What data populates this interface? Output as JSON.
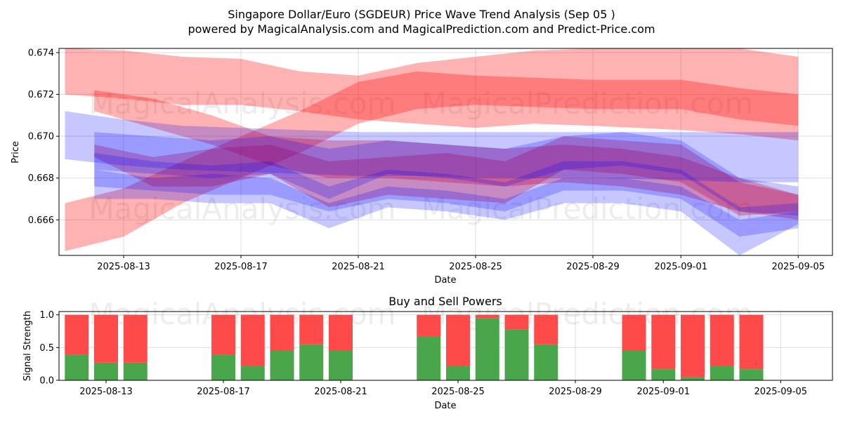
{
  "chart_data": [
    {
      "type": "area",
      "title": "Singapore Dollar/Euro (SGDEUR) Price Wave Trend Analysis (Sep 05 )",
      "subtitle": "powered by MagicalAnalysis.com and MagicalPrediction.com and Predict-Price.com",
      "xlabel": "Date",
      "ylabel": "Price",
      "x_ticks": [
        "2025-08-13",
        "2025-08-17",
        "2025-08-21",
        "2025-08-25",
        "2025-08-29",
        "2025-09-01",
        "2025-09-05"
      ],
      "y_ticks": [
        "0.666",
        "0.668",
        "0.670",
        "0.672",
        "0.674"
      ],
      "ylim": [
        0.6643,
        0.6742
      ],
      "grid": true,
      "watermarks": [
        "MagicalAnalysis.com",
        "MagicalPrediction.com"
      ],
      "colors": {
        "red_band": "#ff0000",
        "blue_band": "#0000ff"
      },
      "red_bands": [
        {
          "x": [
            "2025-08-11",
            "2025-08-13",
            "2025-08-15",
            "2025-08-17",
            "2025-08-19",
            "2025-08-21",
            "2025-08-23",
            "2025-08-25",
            "2025-08-27",
            "2025-08-29",
            "2025-09-01",
            "2025-09-03",
            "2025-09-05"
          ],
          "upper": [
            0.6742,
            0.6741,
            0.6738,
            0.6737,
            0.6731,
            0.6729,
            0.6735,
            0.6738,
            0.6741,
            0.6742,
            0.6742,
            0.6742,
            0.6738
          ],
          "lower": [
            0.672,
            0.6718,
            0.6715,
            0.6715,
            0.6712,
            0.6708,
            0.6706,
            0.6704,
            0.6706,
            0.6705,
            0.6703,
            0.6701,
            0.6698
          ]
        },
        {
          "x": [
            "2025-08-11",
            "2025-08-13",
            "2025-08-15",
            "2025-08-17",
            "2025-08-19",
            "2025-08-21",
            "2025-08-23",
            "2025-08-25",
            "2025-08-27",
            "2025-08-29",
            "2025-09-01",
            "2025-09-03",
            "2025-09-05"
          ],
          "upper": [
            0.6668,
            0.6675,
            0.6688,
            0.67,
            0.6712,
            0.6726,
            0.6731,
            0.6729,
            0.6728,
            0.6727,
            0.6727,
            0.6723,
            0.672
          ],
          "lower": [
            0.6645,
            0.6652,
            0.6668,
            0.668,
            0.6692,
            0.6706,
            0.6713,
            0.6715,
            0.6714,
            0.6713,
            0.6713,
            0.6708,
            0.6705
          ]
        },
        {
          "x": [
            "2025-08-12",
            "2025-08-14",
            "2025-08-16",
            "2025-08-18",
            "2025-08-20",
            "2025-08-22",
            "2025-08-24",
            "2025-08-26",
            "2025-08-28",
            "2025-08-30",
            "2025-09-01",
            "2025-09-03",
            "2025-09-05"
          ],
          "upper": [
            0.6696,
            0.669,
            0.6694,
            0.6696,
            0.6688,
            0.669,
            0.6692,
            0.6688,
            0.67,
            0.6698,
            0.6696,
            0.6678,
            0.6672
          ],
          "lower": [
            0.669,
            0.6676,
            0.6676,
            0.6682,
            0.6666,
            0.6672,
            0.667,
            0.6668,
            0.6684,
            0.6682,
            0.6678,
            0.6662,
            0.6664
          ]
        },
        {
          "x": [
            "2025-08-12",
            "2025-08-14",
            "2025-08-16",
            "2025-08-18",
            "2025-08-20",
            "2025-08-22",
            "2025-08-24",
            "2025-08-26",
            "2025-08-28",
            "2025-08-30",
            "2025-09-01",
            "2025-09-03",
            "2025-09-05"
          ],
          "upper": [
            0.6722,
            0.6718,
            0.671,
            0.67,
            0.6698,
            0.6698,
            0.6696,
            0.6694,
            0.6696,
            0.6694,
            0.669,
            0.668,
            0.6672
          ],
          "lower": [
            0.6712,
            0.6704,
            0.6696,
            0.6686,
            0.668,
            0.668,
            0.6678,
            0.6676,
            0.6678,
            0.6676,
            0.6672,
            0.6664,
            0.666
          ]
        }
      ],
      "blue_bands": [
        {
          "x": [
            "2025-08-11",
            "2025-08-13",
            "2025-08-15",
            "2025-08-17",
            "2025-08-19",
            "2025-08-21",
            "2025-08-23",
            "2025-08-25",
            "2025-08-27",
            "2025-08-29",
            "2025-09-01",
            "2025-09-03",
            "2025-09-05"
          ],
          "upper": [
            0.6712,
            0.6708,
            0.6705,
            0.6704,
            0.6703,
            0.6702,
            0.6702,
            0.6702,
            0.6702,
            0.6702,
            0.6702,
            0.6702,
            0.6702
          ],
          "lower": [
            0.6689,
            0.6686,
            0.6684,
            0.6683,
            0.6682,
            0.6681,
            0.6681,
            0.668,
            0.668,
            0.668,
            0.6679,
            0.6678,
            0.6678
          ]
        },
        {
          "x": [
            "2025-08-12",
            "2025-08-14",
            "2025-08-16",
            "2025-08-18",
            "2025-08-20",
            "2025-08-22",
            "2025-08-24",
            "2025-08-26",
            "2025-08-28",
            "2025-08-30",
            "2025-09-01",
            "2025-09-03",
            "2025-09-05"
          ],
          "upper": [
            0.6702,
            0.67,
            0.6698,
            0.67,
            0.6694,
            0.6698,
            0.6696,
            0.6694,
            0.67,
            0.6702,
            0.6698,
            0.668,
            0.6676
          ],
          "lower": [
            0.6684,
            0.6682,
            0.668,
            0.6682,
            0.667,
            0.6682,
            0.668,
            0.6676,
            0.6684,
            0.6686,
            0.6682,
            0.6664,
            0.6662
          ]
        },
        {
          "x": [
            "2025-08-12",
            "2025-08-14",
            "2025-08-16",
            "2025-08-18",
            "2025-08-20",
            "2025-08-22",
            "2025-08-24",
            "2025-08-26",
            "2025-08-28",
            "2025-08-30",
            "2025-09-01",
            "2025-09-03",
            "2025-09-05"
          ],
          "upper": [
            0.6692,
            0.6688,
            0.6686,
            0.6688,
            0.6676,
            0.6684,
            0.6682,
            0.6678,
            0.6688,
            0.6688,
            0.6684,
            0.6666,
            0.6668
          ],
          "lower": [
            0.6676,
            0.6674,
            0.6672,
            0.6672,
            0.6664,
            0.667,
            0.6668,
            0.6664,
            0.6674,
            0.6674,
            0.667,
            0.6652,
            0.6656
          ]
        },
        {
          "x": [
            "2025-08-12",
            "2025-08-14",
            "2025-08-16",
            "2025-08-18",
            "2025-08-20",
            "2025-08-22",
            "2025-08-24",
            "2025-08-26",
            "2025-08-28",
            "2025-08-30",
            "2025-09-01",
            "2025-09-03",
            "2025-09-05"
          ],
          "upper": [
            0.6684,
            0.668,
            0.6682,
            0.668,
            0.6668,
            0.6676,
            0.6674,
            0.667,
            0.668,
            0.668,
            0.6676,
            0.666,
            0.6664
          ],
          "lower": [
            0.667,
            0.667,
            0.6668,
            0.6668,
            0.6656,
            0.6666,
            0.6664,
            0.666,
            0.6668,
            0.6668,
            0.6664,
            0.6642,
            0.6658
          ]
        }
      ]
    },
    {
      "type": "bar",
      "title": "Buy and Sell Powers",
      "xlabel": "Date",
      "ylabel": "Signal Strength",
      "x_ticks": [
        "2025-08-13",
        "2025-08-17",
        "2025-08-21",
        "2025-08-25",
        "2025-08-29",
        "2025-09-01",
        "2025-09-05"
      ],
      "y_ticks": [
        "0.0",
        "0.5",
        "1.0"
      ],
      "ylim": [
        0,
        1.05
      ],
      "grid": true,
      "watermarks": [
        "MagicalAnalysis.com",
        "MagicalPrediction.com"
      ],
      "colors": {
        "buy": "#4aa64a",
        "sell": "#ff4a4a"
      },
      "categories": [
        "2025-08-12",
        "2025-08-13",
        "2025-08-14",
        "2025-08-17",
        "2025-08-18",
        "2025-08-19",
        "2025-08-20",
        "2025-08-21",
        "2025-08-24",
        "2025-08-25",
        "2025-08-26",
        "2025-08-27",
        "2025-08-28",
        "2025-08-31",
        "2025-09-01",
        "2025-09-02",
        "2025-09-03",
        "2025-09-04"
      ],
      "series": [
        {
          "values": [
            0.39,
            0.27,
            0.27,
            0.39,
            0.22,
            0.45,
            0.55,
            0.45,
            0.67,
            0.22,
            0.95,
            0.78,
            0.55,
            0.45,
            0.17,
            0.05,
            0.22,
            0.17
          ]
        },
        {
          "values": [
            0.61,
            0.73,
            0.73,
            0.61,
            0.78,
            0.55,
            0.45,
            0.55,
            0.33,
            0.78,
            0.05,
            0.22,
            0.45,
            0.55,
            0.83,
            0.95,
            0.78,
            0.83
          ]
        }
      ]
    }
  ]
}
